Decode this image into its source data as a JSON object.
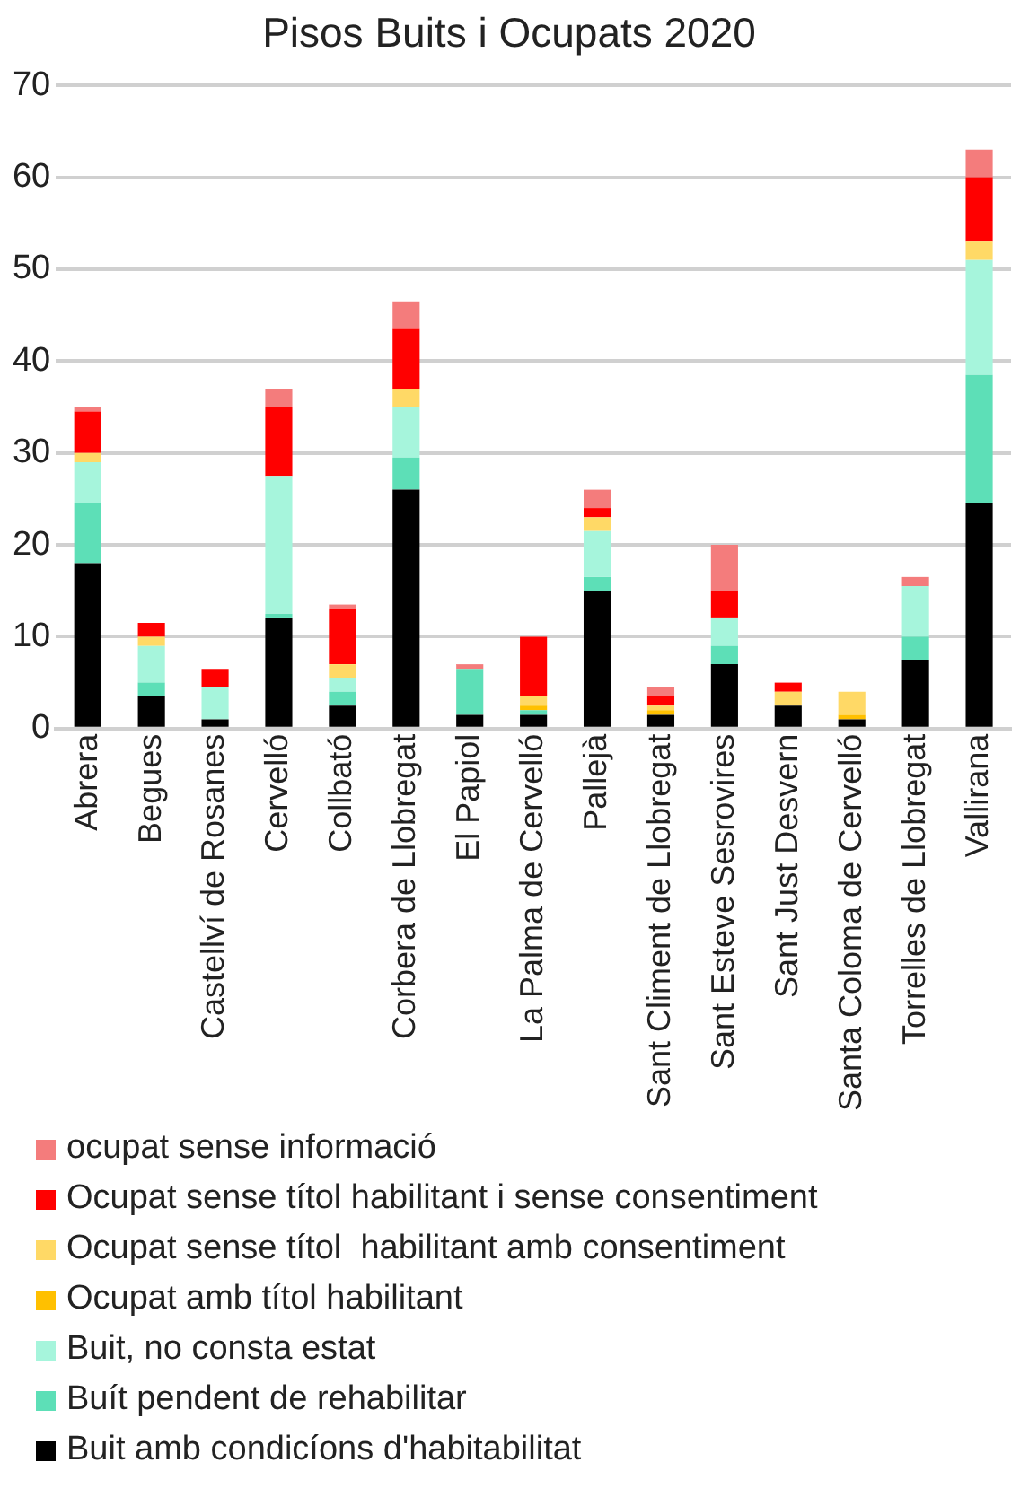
{
  "chart_data": {
    "type": "bar",
    "title": "Pisos Buits i Ocupats 2020",
    "stacked": true,
    "legend": "bottom",
    "grid": "y",
    "categories": [
      "Abrera",
      "Begues",
      "Castellví de Rosanes",
      "Cervelló",
      "Collbató",
      "Corbera de Llobregat",
      "El Papiol",
      "La Palma de Cervelló",
      "Pallejà",
      "Sant Climent de Llobregat",
      "Sant Esteve Sesrovires",
      "Sant Just Desvern",
      "Santa Coloma de Cervelló",
      "Torrelles de Llobregat",
      "Vallirana"
    ],
    "ylim": [
      0,
      70
    ],
    "yticks": [
      0,
      10,
      20,
      30,
      40,
      50,
      60,
      70
    ],
    "series": [
      {
        "name": "Buit amb condicíons d'habitabilitat",
        "color": "#000000",
        "values": [
          18,
          3.5,
          1,
          12,
          2.5,
          26,
          1.5,
          1.5,
          15,
          1.5,
          7,
          2.5,
          1,
          7.5,
          24.5
        ]
      },
      {
        "name": "Buít pendent de rehabilitar",
        "color": "#5ddfb7",
        "values": [
          6.5,
          1.5,
          0,
          0.5,
          1.5,
          3.5,
          5,
          0.5,
          1.5,
          0,
          2,
          0,
          0,
          2.5,
          14
        ]
      },
      {
        "name": "Buit, no consta estat",
        "color": "#a6f5dc",
        "values": [
          4.5,
          4,
          3.5,
          15,
          1.5,
          5.5,
          0,
          0,
          5,
          0,
          3,
          0,
          0,
          5.5,
          12.5
        ]
      },
      {
        "name": "Ocupat amb títol habilitant",
        "color": "#ffc000",
        "values": [
          0,
          0,
          0,
          0,
          0,
          0,
          0,
          0.5,
          0,
          0.5,
          0,
          0,
          0.5,
          0,
          0
        ]
      },
      {
        "name": "Ocupat sense títol  habilitant amb consentiment",
        "color": "#ffd966",
        "values": [
          1,
          1,
          0,
          0,
          1.5,
          2,
          0,
          1,
          1.5,
          0.5,
          0,
          1.5,
          2.5,
          0,
          2
        ]
      },
      {
        "name": "Ocupat sense títol habilitant i sense consentiment",
        "color": "#ff0000",
        "values": [
          4.5,
          1.5,
          2,
          7.5,
          6,
          6.5,
          0,
          6.5,
          1,
          1,
          3,
          1,
          0,
          0,
          7
        ]
      },
      {
        "name": "ocupat sense informació",
        "color": "#f47c7c",
        "values": [
          0.5,
          0,
          0,
          2,
          0.5,
          3,
          0.5,
          0,
          2,
          1,
          5,
          0,
          0,
          1,
          3
        ]
      }
    ]
  }
}
